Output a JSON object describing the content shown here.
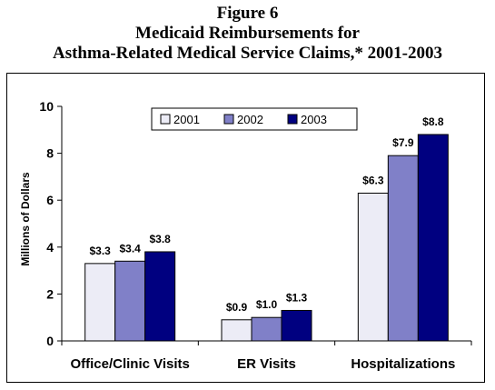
{
  "figure": {
    "label": "Figure 6",
    "title_line1": "Medicaid Reimbursements for",
    "title_line2": "Asthma-Related Medical Service Claims,* 2001-2003"
  },
  "colors": {
    "2001": "#ECECF6",
    "2002": "#8080C8",
    "2003": "#000080"
  },
  "chart_data": {
    "type": "bar",
    "title": "Medicaid Reimbursements for Asthma-Related Medical Service Claims,* 2001-2003",
    "categories": [
      "Office/Clinic Visits",
      "ER Visits",
      "Hospitalizations"
    ],
    "series": [
      {
        "name": "2001",
        "values": [
          3.3,
          0.9,
          6.3
        ],
        "labels": [
          "$3.3",
          "$0.9",
          "$6.3"
        ]
      },
      {
        "name": "2002",
        "values": [
          3.4,
          1.0,
          7.9
        ],
        "labels": [
          "$3.4",
          "$1.0",
          "$7.9"
        ]
      },
      {
        "name": "2003",
        "values": [
          3.8,
          1.3,
          8.8
        ],
        "labels": [
          "$3.8",
          "$1.3",
          "$8.8"
        ]
      }
    ],
    "xlabel": "",
    "ylabel": "Millions of Dollars",
    "ylim": [
      0,
      10
    ],
    "yticks": [
      0,
      2,
      4,
      6,
      8,
      10
    ],
    "legend_position": "top-center",
    "grid": false
  }
}
